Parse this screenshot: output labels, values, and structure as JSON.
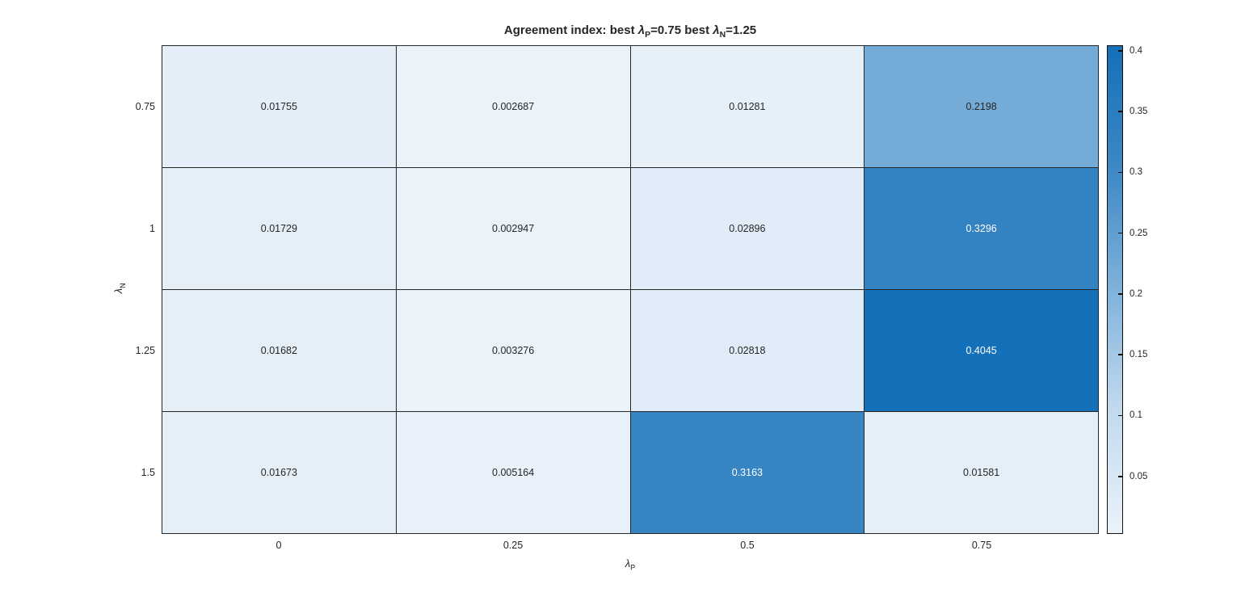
{
  "figure": {
    "background": "#ffffff",
    "title_color": "#262626",
    "title_parts": [
      {
        "text": "Agreement index: best "
      },
      {
        "text": "λ",
        "sub": "P"
      },
      {
        "text": "=0.75 best  "
      },
      {
        "text": "λ",
        "sub": "N"
      },
      {
        "text": "=1.25"
      }
    ]
  },
  "chart_data": {
    "type": "heatmap",
    "title": "Agreement index: best λP=0.75 best λN=1.25",
    "xlabel": {
      "base": "λ",
      "sub": "P"
    },
    "ylabel": {
      "base": "λ",
      "sub": "N"
    },
    "x_categories": [
      "0",
      "0.25",
      "0.5",
      "0.75"
    ],
    "y_categories": [
      "0.75",
      "1",
      "1.25",
      "1.5"
    ],
    "values": [
      [
        0.01755,
        0.002687,
        0.01281,
        0.2198
      ],
      [
        0.01729,
        0.002947,
        0.02896,
        0.3296
      ],
      [
        0.01682,
        0.003276,
        0.02818,
        0.4045
      ],
      [
        0.01673,
        0.005164,
        0.3163,
        0.01581
      ]
    ],
    "color_range": [
      0.002687,
      0.4045
    ],
    "colorbar_ticks": [
      "0.05",
      "0.1",
      "0.15",
      "0.2",
      "0.25",
      "0.3",
      "0.35",
      "0.4"
    ],
    "colormap": [
      "#eaf2fa",
      "#c3daee",
      "#7fb2db",
      "#3d88c5",
      "#1470b9"
    ],
    "grid_color": "#262626",
    "cell_text_dark": "#262626",
    "cell_text_light": "#ffffff",
    "legend_position": "right-colorbar"
  }
}
